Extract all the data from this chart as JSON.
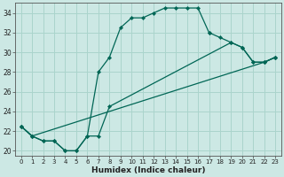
{
  "xlabel": "Humidex (Indice chaleur)",
  "xlim": [
    -0.5,
    23.5
  ],
  "ylim": [
    19.5,
    35.0
  ],
  "yticks": [
    20,
    22,
    24,
    26,
    28,
    30,
    32,
    34
  ],
  "xticks": [
    0,
    1,
    2,
    3,
    4,
    5,
    6,
    7,
    8,
    9,
    10,
    11,
    12,
    13,
    14,
    15,
    16,
    17,
    18,
    19,
    20,
    21,
    22,
    23
  ],
  "bg_color": "#cce8e4",
  "grid_color": "#aad4cc",
  "line_color": "#006655",
  "lines": [
    {
      "x": [
        0,
        1,
        2,
        3,
        4,
        5,
        6,
        7,
        8,
        9,
        10,
        11,
        12,
        13,
        14,
        15,
        16,
        17
      ],
      "y": [
        22.5,
        21.5,
        21.0,
        21.0,
        20.0,
        20.0,
        21.5,
        28.0,
        29.5,
        32.5,
        33.5,
        33.5,
        34.0,
        34.5,
        34.5,
        34.5,
        34.5,
        32.0
      ]
    },
    {
      "x": [
        0,
        1,
        2,
        3,
        4,
        5,
        6,
        7,
        8,
        19,
        20,
        21,
        22,
        23
      ],
      "y": [
        22.5,
        21.5,
        21.0,
        21.0,
        20.0,
        20.0,
        21.5,
        21.5,
        24.5,
        31.0,
        30.5,
        29.0,
        29.0,
        29.5
      ]
    },
    {
      "x": [
        0,
        1,
        22,
        23
      ],
      "y": [
        22.5,
        21.5,
        29.0,
        29.5
      ]
    },
    {
      "x": [
        17,
        18,
        19,
        20,
        21,
        22,
        23
      ],
      "y": [
        32.0,
        31.5,
        31.0,
        30.5,
        29.0,
        29.0,
        29.5
      ]
    }
  ]
}
